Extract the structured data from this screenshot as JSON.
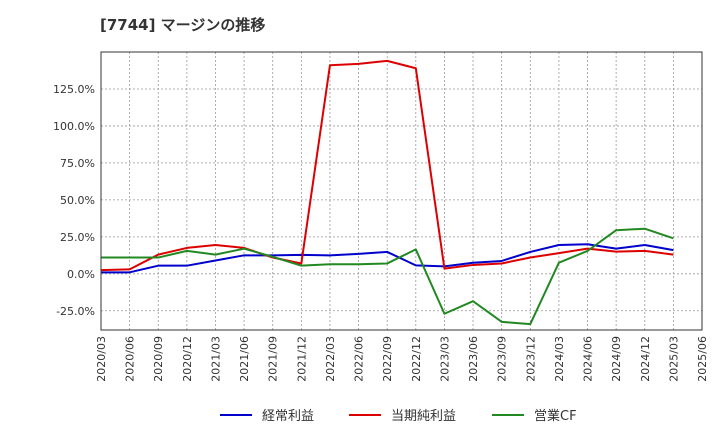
{
  "chart_data": {
    "type": "line",
    "title": "[7744]  マージンの推移",
    "xlabel": "",
    "ylabel": "",
    "ylim": [
      -38,
      150
    ],
    "grid": true,
    "legend_position": "bottom",
    "y_ticks": [
      -25,
      0,
      25,
      50,
      75,
      100,
      125
    ],
    "y_tick_labels": [
      "-25.0%",
      "0.0%",
      "25.0%",
      "50.0%",
      "75.0%",
      "100.0%",
      "125.0%"
    ],
    "categories": [
      "2020/03",
      "2020/06",
      "2020/09",
      "2020/12",
      "2021/03",
      "2021/06",
      "2021/09",
      "2021/12",
      "2022/03",
      "2022/06",
      "2022/09",
      "2022/12",
      "2023/03",
      "2023/06",
      "2023/09",
      "2023/12",
      "2024/03",
      "2024/06",
      "2024/09",
      "2024/12",
      "2025/03",
      "2025/06"
    ],
    "series": [
      {
        "name": "経常利益",
        "color": "#0000cc",
        "values": [
          1.0,
          1.0,
          5.5,
          5.5,
          9.0,
          12.5,
          12.5,
          12.8,
          12.5,
          13.5,
          14.8,
          5.7,
          5.0,
          7.5,
          8.7,
          14.8,
          19.5,
          20.0,
          17.0,
          19.5,
          16.0,
          null
        ]
      },
      {
        "name": "当期純利益",
        "color": "#dd0000",
        "values": [
          2.5,
          3.0,
          13.0,
          17.5,
          19.5,
          17.5,
          11.0,
          7.0,
          141.0,
          142.0,
          144.0,
          139.0,
          3.5,
          6.0,
          7.0,
          11.0,
          14.0,
          17.0,
          15.0,
          15.5,
          13.0,
          null
        ]
      },
      {
        "name": "営業CF",
        "color": "#228822",
        "values": [
          11.0,
          11.0,
          11.0,
          15.5,
          13.0,
          17.0,
          11.5,
          5.5,
          6.5,
          6.5,
          7.0,
          16.5,
          -27.0,
          -18.5,
          -32.5,
          -34.0,
          7.5,
          15.5,
          29.5,
          30.5,
          24.0,
          null
        ]
      }
    ]
  }
}
